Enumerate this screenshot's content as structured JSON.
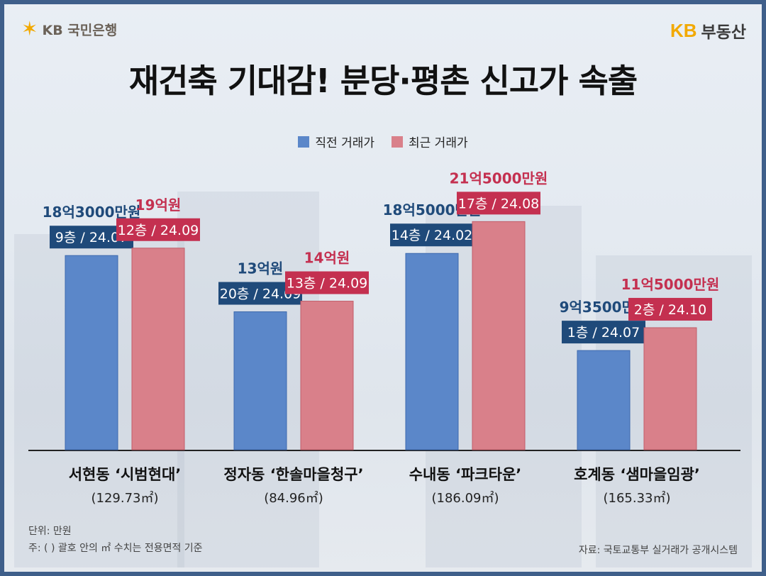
{
  "header": {
    "bank_logo_text": "KB 국민은행",
    "brand_kb": "KB",
    "brand_name": "부동산"
  },
  "title": "재건축 기대감! 분당·평촌 신고가 속출",
  "colors": {
    "prev": "#5b87c9",
    "recent": "#d9808a",
    "prev_label_box": "#1f4a7a",
    "recent_label_box": "#c43050",
    "prev_value_text": "#1f4a7a",
    "recent_value_text": "#c43050"
  },
  "chart_data": {
    "type": "bar",
    "title": "재건축 기대감! 분당·평촌 신고가 속출",
    "unit": "만원",
    "categories": [
      {
        "name": "서현동 ‘시범현대’",
        "area": "(129.73㎡)"
      },
      {
        "name": "정자동 ‘한솔마을청구’",
        "area": "(84.96㎡)"
      },
      {
        "name": "수내동 ‘파크타운’",
        "area": "(186.09㎡)"
      },
      {
        "name": "호계동 ‘샘마을임광’",
        "area": "(165.33㎡)"
      }
    ],
    "series": [
      {
        "name": "직전 거래가",
        "values": [
          183000,
          130000,
          185000,
          93500
        ],
        "value_labels": [
          "18억3000만원",
          "13억원",
          "18억5000만원",
          "9억3500만원"
        ],
        "floor_date_labels": [
          "9층 / 24.07",
          "20층 / 24.09",
          "14층 / 24.02",
          "1층 / 24.07"
        ]
      },
      {
        "name": "최근 거래가",
        "values": [
          190000,
          140000,
          215000,
          115000
        ],
        "value_labels": [
          "19억원",
          "14억원",
          "21억5000만원",
          "11억5000만원"
        ],
        "floor_date_labels": [
          "12층 / 24.09",
          "13층 / 24.09",
          "17층 / 24.08",
          "2층 / 24.10"
        ]
      }
    ],
    "legend_position": "top-center",
    "grid": false
  },
  "notes": {
    "unit_note": "단위: 만원",
    "area_note": "주: ( ) 괄호 안의 ㎡ 수치는 전용면적 기준",
    "source": "자료: 국토교통부 실거래가 공개시스템"
  }
}
